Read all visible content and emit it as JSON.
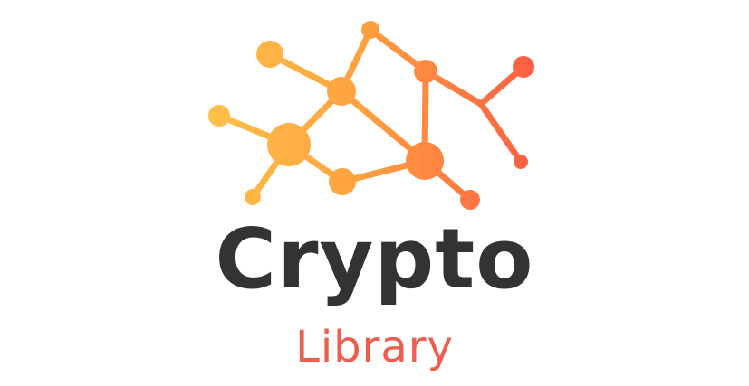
{
  "logo": {
    "primary_text": "Crypto",
    "secondary_text": "Library",
    "mark_icon": "network-graph-icon",
    "colors": {
      "primary_text": "#333333",
      "secondary_text": "#ee5e4e",
      "gradient_start": "#ffc04a",
      "gradient_mid": "#ffa23f",
      "gradient_end": "#fb5b45"
    }
  }
}
